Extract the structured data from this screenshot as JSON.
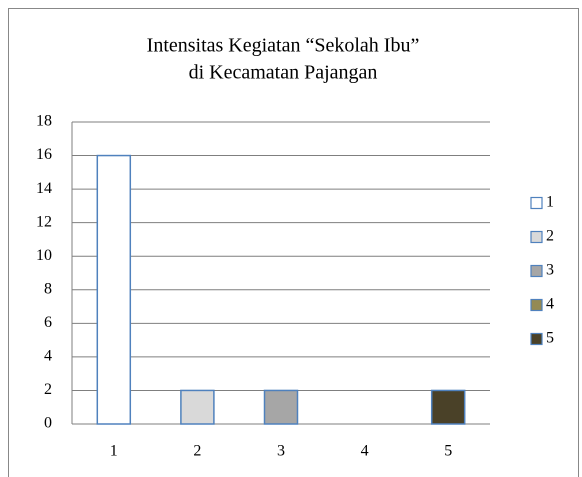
{
  "chart_data": {
    "type": "bar",
    "title": [
      "Intensitas Kegiatan “Sekolah Ibu”",
      "di Kecamatan Pajangan"
    ],
    "categories": [
      "1",
      "2",
      "3",
      "4",
      "5"
    ],
    "values": [
      16,
      2,
      2,
      0,
      2
    ],
    "colors": [
      "#ffffff",
      "#d9d9d9",
      "#a6a6a6",
      "#948a54",
      "#4a4128"
    ],
    "ylim": [
      0,
      18
    ],
    "yticks": [
      0,
      2,
      4,
      6,
      8,
      10,
      12,
      14,
      16,
      18
    ],
    "grid": true,
    "legend": "right"
  }
}
